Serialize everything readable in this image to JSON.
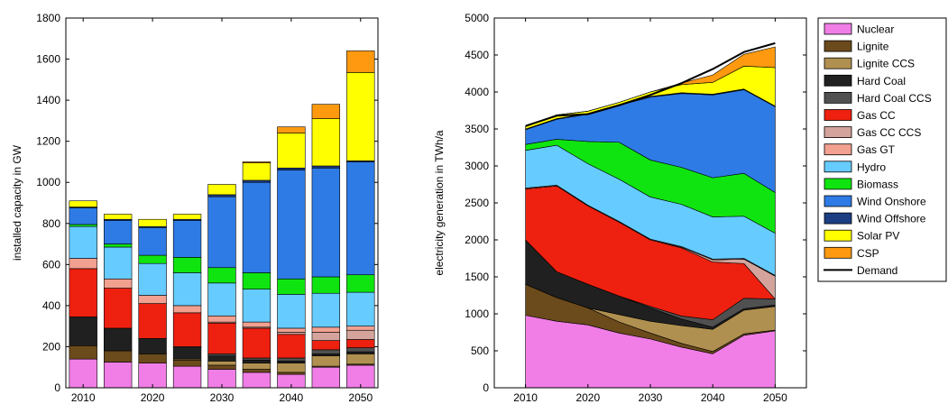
{
  "legend": {
    "items": [
      "Nuclear",
      "Lignite",
      "Lignite CCS",
      "Hard Coal",
      "Hard Coal CCS",
      "Gas CC",
      "Gas CC CCS",
      "Gas GT",
      "Hydro",
      "Biomass",
      "Wind Onshore",
      "Wind Offshore",
      "Solar PV",
      "CSP",
      "Demand"
    ]
  },
  "colors": {
    "Nuclear": "#f07ee6",
    "Lignite": "#6b4a1c",
    "Lignite CCS": "#b09050",
    "Hard Coal": "#202020",
    "Hard Coal CCS": "#505050",
    "Gas CC": "#ee2010",
    "Gas CC CCS": "#d4a49c",
    "Gas GT": "#f2a090",
    "Hydro": "#66ccff",
    "Biomass": "#10e410",
    "Wind Onshore": "#2e7be6",
    "Wind Offshore": "#1c3e82",
    "Solar PV": "#ffff00",
    "CSP": "#ff9a10",
    "Demand": "#000000"
  },
  "chart_data": [
    {
      "type": "bar",
      "stacked": true,
      "title": "",
      "xlabel": "",
      "ylabel": "installed capacity in GW",
      "ylim": [
        0,
        1800
      ],
      "yticks": [
        0,
        200,
        400,
        600,
        800,
        1000,
        1200,
        1400,
        1600,
        1800
      ],
      "xticks": [
        "2010",
        "2020",
        "2030",
        "2040",
        "2050"
      ],
      "categories": [
        "2010",
        "2015",
        "2020",
        "2025",
        "2030",
        "2035",
        "2040",
        "2045",
        "2050"
      ],
      "series": [
        {
          "name": "Nuclear",
          "values": [
            140,
            125,
            120,
            105,
            90,
            75,
            65,
            100,
            110
          ]
        },
        {
          "name": "Lignite",
          "values": [
            65,
            55,
            45,
            30,
            20,
            15,
            10,
            5,
            5
          ]
        },
        {
          "name": "Lignite CCS",
          "values": [
            0,
            0,
            0,
            5,
            20,
            30,
            45,
            50,
            50
          ]
        },
        {
          "name": "Hard Coal",
          "values": [
            140,
            110,
            75,
            55,
            25,
            15,
            10,
            10,
            10
          ]
        },
        {
          "name": "Hard Coal CCS",
          "values": [
            0,
            0,
            0,
            5,
            10,
            10,
            15,
            20,
            20
          ]
        },
        {
          "name": "Gas CC",
          "values": [
            235,
            195,
            170,
            165,
            150,
            145,
            115,
            45,
            40
          ]
        },
        {
          "name": "Gas CC CCS",
          "values": [
            0,
            0,
            0,
            0,
            5,
            5,
            10,
            40,
            45
          ]
        },
        {
          "name": "Gas GT",
          "values": [
            50,
            45,
            40,
            35,
            30,
            25,
            20,
            25,
            20
          ]
        },
        {
          "name": "Hydro",
          "values": [
            155,
            155,
            155,
            160,
            160,
            160,
            165,
            165,
            165
          ]
        },
        {
          "name": "Biomass",
          "values": [
            10,
            15,
            40,
            75,
            75,
            80,
            75,
            80,
            85
          ]
        },
        {
          "name": "Wind Onshore",
          "values": [
            80,
            115,
            135,
            180,
            345,
            440,
            530,
            530,
            550
          ]
        },
        {
          "name": "Wind Offshore",
          "values": [
            5,
            5,
            5,
            5,
            10,
            10,
            10,
            10,
            5
          ]
        },
        {
          "name": "Solar PV",
          "values": [
            30,
            25,
            35,
            25,
            50,
            85,
            170,
            230,
            430
          ]
        },
        {
          "name": "CSP",
          "values": [
            0,
            0,
            0,
            0,
            0,
            5,
            30,
            70,
            105
          ]
        }
      ]
    },
    {
      "type": "area",
      "stacked": true,
      "title": "",
      "xlabel": "",
      "ylabel": "electricity generation in TWh/a",
      "ylim": [
        0,
        5000
      ],
      "xlim": [
        2005,
        2055
      ],
      "yticks": [
        0,
        500,
        1000,
        1500,
        2000,
        2500,
        3000,
        3500,
        4000,
        4500,
        5000
      ],
      "xticks": [
        "2010",
        "2020",
        "2030",
        "2040",
        "2050"
      ],
      "x": [
        2010,
        2015,
        2020,
        2025,
        2030,
        2035,
        2040,
        2045,
        2050
      ],
      "series": [
        {
          "name": "Nuclear",
          "values": [
            980,
            900,
            850,
            740,
            660,
            550,
            460,
            710,
            770
          ]
        },
        {
          "name": "Lignite",
          "values": [
            420,
            320,
            230,
            150,
            80,
            50,
            30,
            20,
            10
          ]
        },
        {
          "name": "Lignite CCS",
          "values": [
            0,
            0,
            0,
            100,
            160,
            240,
            300,
            320,
            320
          ]
        },
        {
          "name": "Hard Coal",
          "values": [
            600,
            350,
            320,
            250,
            180,
            90,
            30,
            20,
            20
          ]
        },
        {
          "name": "Hard Coal CCS",
          "values": [
            0,
            0,
            0,
            0,
            20,
            40,
            100,
            140,
            80
          ]
        },
        {
          "name": "Gas CC",
          "values": [
            690,
            1160,
            1060,
            1000,
            900,
            920,
            780,
            470,
            0
          ]
        },
        {
          "name": "Gas CC CCS",
          "values": [
            0,
            0,
            0,
            0,
            0,
            10,
            30,
            60,
            310
          ]
        },
        {
          "name": "Gas GT",
          "values": [
            10,
            10,
            10,
            10,
            10,
            10,
            10,
            10,
            10
          ]
        },
        {
          "name": "Hydro",
          "values": [
            510,
            540,
            560,
            570,
            570,
            570,
            570,
            570,
            570
          ]
        },
        {
          "name": "Biomass",
          "values": [
            80,
            80,
            300,
            500,
            500,
            500,
            530,
            580,
            550
          ]
        },
        {
          "name": "Wind Onshore",
          "values": [
            200,
            270,
            370,
            500,
            850,
            1000,
            1120,
            1130,
            1160
          ]
        },
        {
          "name": "Wind Offshore",
          "values": [
            10,
            10,
            10,
            10,
            10,
            10,
            10,
            10,
            10
          ]
        },
        {
          "name": "Solar PV",
          "values": [
            30,
            50,
            30,
            30,
            60,
            110,
            160,
            310,
            520
          ]
        },
        {
          "name": "CSP",
          "values": [
            0,
            0,
            0,
            0,
            0,
            20,
            100,
            160,
            280
          ]
        }
      ],
      "demand": [
        3540,
        3680,
        3700,
        3820,
        3960,
        4120,
        4310,
        4540,
        4660
      ]
    }
  ]
}
